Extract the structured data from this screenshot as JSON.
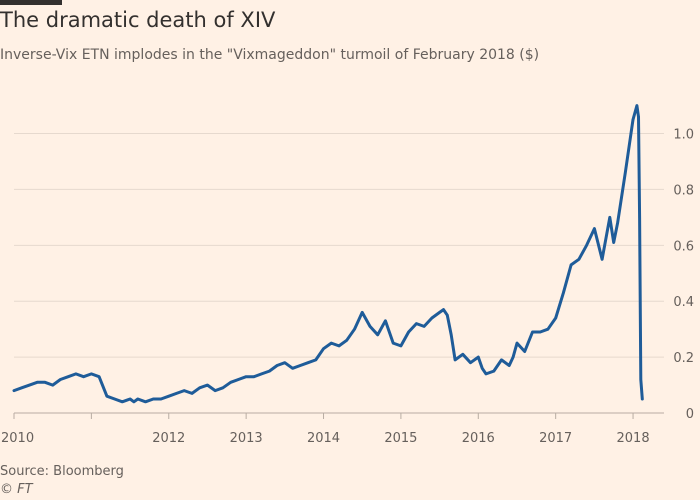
{
  "title": "The dramatic death of XIV",
  "subtitle": "Inverse-Vix ETN implodes in the \"Vixmageddon\" turmoil of February 2018 ($)",
  "source": "Source: Bloomberg",
  "credit": "© FT",
  "colors": {
    "background": "#fff1e5",
    "line": "#1f5c99",
    "grid": "#e6d9ce",
    "text": "#66605c"
  },
  "chart_data": {
    "type": "line",
    "title": "The dramatic death of XIV",
    "xlabel": "",
    "ylabel": "$",
    "xlim": [
      2010.0,
      2018.4
    ],
    "ylim": [
      0,
      1.12
    ],
    "y_ticks": [
      0,
      0.2,
      0.4,
      0.6,
      0.8,
      1.0
    ],
    "y_tick_labels": [
      "0",
      "0.2",
      "0.4",
      "0.6",
      "0.8",
      "1.0"
    ],
    "x_ticks": [
      2010,
      2011,
      2012,
      2013,
      2014,
      2015,
      2016,
      2017,
      2018
    ],
    "x_tick_labels": [
      "2010",
      "",
      "2012",
      "2013",
      "2014",
      "2015",
      "2016",
      "2017",
      "2018"
    ],
    "series": [
      {
        "name": "XIV",
        "x": [
          2010.0,
          2010.1,
          2010.2,
          2010.3,
          2010.4,
          2010.5,
          2010.6,
          2010.7,
          2010.8,
          2010.9,
          2011.0,
          2011.1,
          2011.2,
          2011.3,
          2011.4,
          2011.5,
          2011.55,
          2011.6,
          2011.7,
          2011.8,
          2011.9,
          2012.0,
          2012.1,
          2012.2,
          2012.3,
          2012.4,
          2012.5,
          2012.6,
          2012.7,
          2012.8,
          2012.9,
          2013.0,
          2013.1,
          2013.2,
          2013.3,
          2013.4,
          2013.5,
          2013.6,
          2013.7,
          2013.8,
          2013.9,
          2014.0,
          2014.1,
          2014.2,
          2014.3,
          2014.4,
          2014.5,
          2014.6,
          2014.7,
          2014.8,
          2014.9,
          2015.0,
          2015.1,
          2015.2,
          2015.3,
          2015.4,
          2015.5,
          2015.55,
          2015.6,
          2015.65,
          2015.7,
          2015.8,
          2015.9,
          2016.0,
          2016.05,
          2016.1,
          2016.2,
          2016.3,
          2016.4,
          2016.45,
          2016.5,
          2016.6,
          2016.7,
          2016.8,
          2016.9,
          2017.0,
          2017.1,
          2017.2,
          2017.3,
          2017.4,
          2017.5,
          2017.6,
          2017.7,
          2017.75,
          2017.8,
          2017.9,
          2018.0,
          2018.05,
          2018.07,
          2018.085,
          2018.1,
          2018.12
        ],
        "values": [
          0.08,
          0.09,
          0.1,
          0.11,
          0.11,
          0.1,
          0.12,
          0.13,
          0.14,
          0.13,
          0.14,
          0.13,
          0.06,
          0.05,
          0.04,
          0.05,
          0.04,
          0.05,
          0.04,
          0.05,
          0.05,
          0.06,
          0.07,
          0.08,
          0.07,
          0.09,
          0.1,
          0.08,
          0.09,
          0.11,
          0.12,
          0.13,
          0.13,
          0.14,
          0.15,
          0.17,
          0.18,
          0.16,
          0.17,
          0.18,
          0.19,
          0.23,
          0.25,
          0.24,
          0.26,
          0.3,
          0.36,
          0.31,
          0.28,
          0.33,
          0.25,
          0.24,
          0.29,
          0.32,
          0.31,
          0.34,
          0.36,
          0.37,
          0.35,
          0.28,
          0.19,
          0.21,
          0.18,
          0.2,
          0.16,
          0.14,
          0.15,
          0.19,
          0.17,
          0.2,
          0.25,
          0.22,
          0.29,
          0.29,
          0.3,
          0.34,
          0.43,
          0.53,
          0.55,
          0.6,
          0.66,
          0.55,
          0.7,
          0.61,
          0.68,
          0.86,
          1.05,
          1.1,
          1.06,
          0.7,
          0.12,
          0.05
        ]
      }
    ]
  }
}
